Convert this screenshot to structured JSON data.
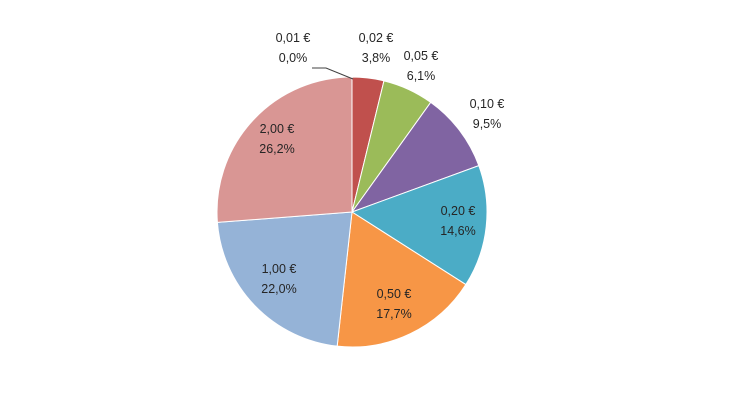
{
  "chart_data": {
    "type": "pie",
    "title": "",
    "slices": [
      {
        "label": "0,01 €",
        "value": 0.0,
        "value_text": "0,0%",
        "color": "#4F81BD"
      },
      {
        "label": "0,02 €",
        "value": 3.8,
        "value_text": "3,8%",
        "color": "#C0504D"
      },
      {
        "label": "0,05 €",
        "value": 6.1,
        "value_text": "6,1%",
        "color": "#9BBB59"
      },
      {
        "label": "0,10 €",
        "value": 9.5,
        "value_text": "9,5%",
        "color": "#8064A2"
      },
      {
        "label": "0,20 €",
        "value": 14.6,
        "value_text": "14,6%",
        "color": "#4BACC6"
      },
      {
        "label": "0,50 €",
        "value": 17.7,
        "value_text": "17,7%",
        "color": "#F79646"
      },
      {
        "label": "1,00 €",
        "value": 22.0,
        "value_text": "22,0%",
        "color": "#95B3D7"
      },
      {
        "label": "2,00 €",
        "value": 26.2,
        "value_text": "26,2%",
        "color": "#D99694"
      }
    ],
    "legend": "none",
    "start_angle": "top",
    "direction": "clockwise"
  }
}
